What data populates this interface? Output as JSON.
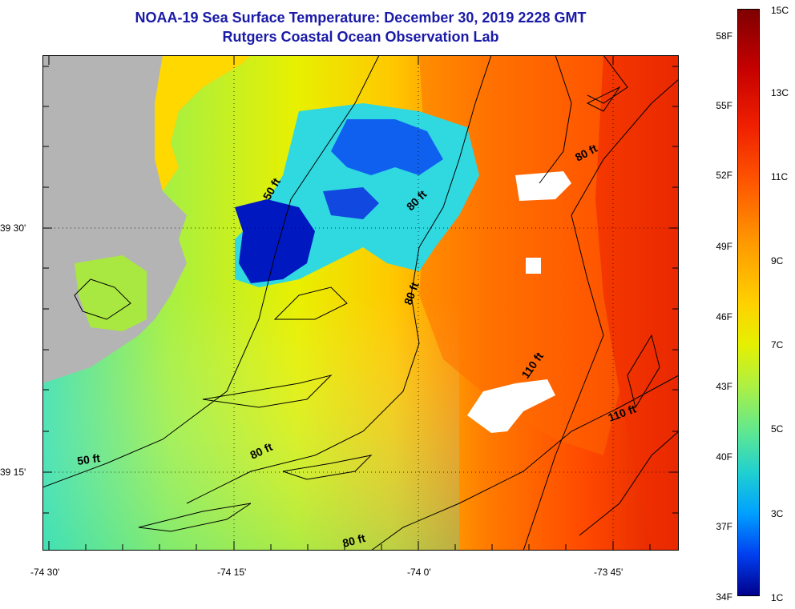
{
  "title": {
    "line1": "NOAA-19 Sea Surface Temperature:  December 30, 2019 2228 GMT",
    "line2": "Rutgers Coastal Ocean Observation Lab"
  },
  "axes": {
    "lat_labels": [
      "39 30'",
      "39 15'"
    ],
    "lon_labels": [
      "-74 30'",
      "-74 15'",
      "-74 0'",
      "-73 45'"
    ]
  },
  "contours": {
    "labels": [
      "50 ft",
      "80 ft",
      "80 ft",
      "80 ft",
      "110 ft",
      "110 ft",
      "50 ft",
      "80 ft",
      "80 ft"
    ]
  },
  "colorbar": {
    "celsius": [
      "15C",
      "13C",
      "11C",
      "9C",
      "7C",
      "5C",
      "3C",
      "1C"
    ],
    "fahrenheit": [
      "58F",
      "55F",
      "52F",
      "49F",
      "46F",
      "43F",
      "40F",
      "37F",
      "34F"
    ]
  },
  "colors": {
    "land": "#b4b4b4",
    "title": "#1a1aa8",
    "cloud": "#ffffff"
  }
}
